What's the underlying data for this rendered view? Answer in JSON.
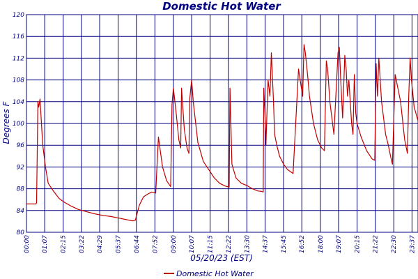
{
  "chart_data": {
    "type": "line",
    "title": "Domestic Hot Water",
    "xlabel": "05/20/23 (EST)",
    "ylabel": "Degrees F",
    "ylim": [
      80,
      120
    ],
    "xlim": [
      "00:00",
      "23:59"
    ],
    "y_ticks": [
      80,
      84,
      88,
      92,
      96,
      100,
      104,
      108,
      112,
      116,
      120
    ],
    "x_tick_labels": [
      "00:00",
      "01:07",
      "02:15",
      "03:22",
      "04:29",
      "05:37",
      "06:44",
      "07:52",
      "09:00",
      "10:07",
      "11:15",
      "12:22",
      "13:30",
      "14:37",
      "15:45",
      "16:52",
      "18:00",
      "19:07",
      "20:15",
      "21:22",
      "22:30",
      "23:37"
    ],
    "grid": true,
    "legend_position": "bottom",
    "colors": {
      "line": "#c00000",
      "grid": "#000080",
      "text": "#000080"
    },
    "series": [
      {
        "name": "Domestic Hot Water",
        "x": [
          "00:00",
          "00:35",
          "00:37",
          "00:42",
          "00:45",
          "00:50",
          "00:55",
          "01:00",
          "01:10",
          "01:20",
          "01:40",
          "02:00",
          "02:20",
          "02:45",
          "03:10",
          "03:40",
          "04:10",
          "04:40",
          "05:10",
          "05:40",
          "06:10",
          "06:30",
          "06:40",
          "06:55",
          "07:10",
          "07:25",
          "07:40",
          "07:48",
          "07:55",
          "08:05",
          "08:20",
          "08:35",
          "08:47",
          "08:50",
          "08:55",
          "09:00",
          "09:10",
          "09:20",
          "09:27",
          "09:30",
          "09:40",
          "09:50",
          "09:57",
          "10:00",
          "10:07",
          "10:13",
          "10:30",
          "10:50",
          "11:10",
          "11:30",
          "11:50",
          "12:10",
          "12:25",
          "12:28",
          "12:35",
          "12:50",
          "13:10",
          "13:30",
          "13:50",
          "14:10",
          "14:25",
          "14:30",
          "14:32",
          "14:37",
          "14:40",
          "14:48",
          "14:55",
          "15:00",
          "15:08",
          "15:12",
          "15:20",
          "15:30",
          "15:45",
          "16:00",
          "16:20",
          "16:40",
          "16:55",
          "17:00",
          "17:05",
          "17:15",
          "17:20",
          "17:35",
          "17:50",
          "18:05",
          "18:15",
          "18:22",
          "18:27",
          "18:35",
          "18:50",
          "19:05",
          "19:10",
          "19:15",
          "19:22",
          "19:30",
          "19:35",
          "19:40",
          "19:45",
          "19:55",
          "20:00",
          "20:05",
          "20:10",
          "20:15",
          "20:30",
          "20:50",
          "21:10",
          "21:20",
          "21:25",
          "21:30",
          "21:35",
          "21:45",
          "22:00",
          "22:10",
          "22:18",
          "22:25",
          "22:35",
          "22:55",
          "23:10",
          "23:20",
          "23:25",
          "23:30",
          "23:35",
          "23:45",
          "23:59"
        ],
        "y": [
          85.2,
          85.2,
          85.4,
          104.0,
          103.0,
          104.5,
          100.0,
          96.0,
          92.0,
          89.0,
          87.5,
          86.2,
          85.5,
          84.8,
          84.2,
          83.8,
          83.4,
          83.1,
          82.9,
          82.6,
          82.3,
          82.1,
          82.2,
          85.0,
          86.5,
          87.0,
          87.4,
          87.3,
          87.2,
          97.5,
          92.0,
          89.5,
          88.6,
          88.4,
          103.5,
          106.5,
          102.0,
          97.0,
          95.5,
          106.5,
          99.0,
          95.5,
          94.5,
          104.5,
          108.0,
          104.0,
          96.5,
          93.0,
          91.5,
          90.0,
          89.0,
          88.5,
          88.3,
          106.5,
          92.5,
          90.0,
          89.0,
          88.6,
          88.0,
          87.6,
          87.5,
          87.4,
          106.5,
          101.0,
          96.0,
          108.0,
          105.0,
          113.0,
          104.0,
          98.0,
          96.0,
          94.0,
          92.5,
          91.5,
          90.8,
          110.0,
          105.0,
          114.5,
          113.0,
          108.0,
          105.0,
          100.0,
          97.0,
          95.5,
          95.0,
          111.5,
          110.0,
          104.0,
          98.0,
          113.0,
          114.0,
          108.0,
          101.0,
          112.5,
          110.0,
          105.0,
          108.0,
          100.0,
          98.0,
          109.0,
          102.0,
          100.0,
          97.5,
          95.0,
          93.5,
          93.2,
          111.0,
          105.0,
          112.0,
          104.0,
          98.0,
          96.0,
          94.0,
          92.5,
          109.0,
          104.0,
          97.0,
          94.5,
          105.0,
          112.0,
          108.0,
          103.0,
          100.5
        ]
      }
    ],
    "legend": [
      "Domestic Hot Water"
    ]
  }
}
